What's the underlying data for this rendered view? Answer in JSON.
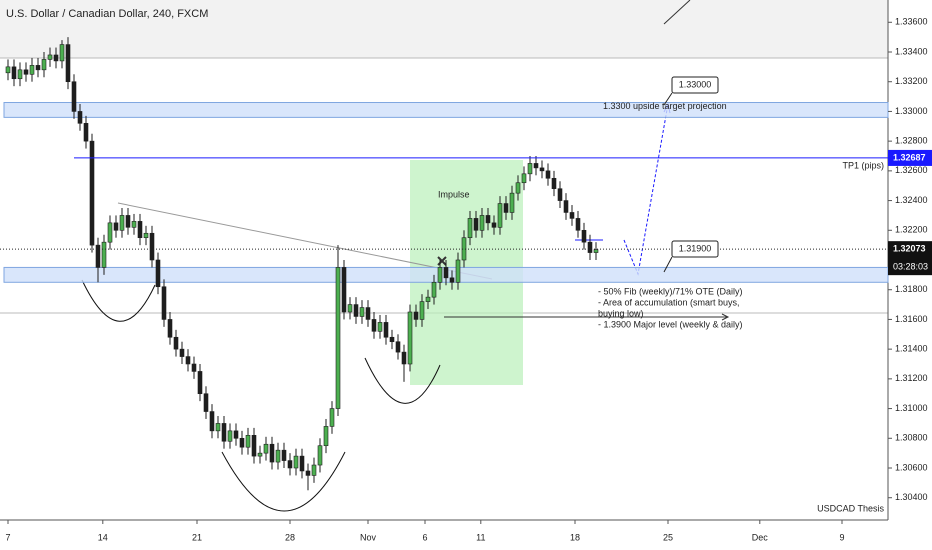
{
  "chart_data": {
    "type": "candlestick",
    "title": "U.S. Dollar / Canadian Dollar, 240, FXCM",
    "up_color": "#4caf50",
    "down_color": "#1e1e1e",
    "open": [
      1.3326,
      1.333,
      1.3322,
      1.3328,
      1.3325,
      1.3331,
      1.3328,
      1.3335,
      1.3338,
      1.3334,
      1.3345,
      1.332,
      1.33,
      1.3292,
      1.328,
      1.321,
      1.3195,
      1.3212,
      1.3225,
      1.322,
      1.323,
      1.3222,
      1.3226,
      1.3215,
      1.3218,
      1.32,
      1.3182,
      1.316,
      1.3148,
      1.314,
      1.3135,
      1.313,
      1.3125,
      1.311,
      1.3098,
      1.3085,
      1.309,
      1.3078,
      1.3085,
      1.308,
      1.3074,
      1.3082,
      1.3068,
      1.307,
      1.3076,
      1.3064,
      1.3072,
      1.3065,
      1.306,
      1.3068,
      1.3058,
      1.3055,
      1.3062,
      1.3075,
      1.3088,
      1.31,
      1.3195,
      1.3165,
      1.317,
      1.3162,
      1.3168,
      1.316,
      1.3152,
      1.3158,
      1.3148,
      1.3145,
      1.3138,
      1.313,
      1.3165,
      1.316,
      1.3172,
      1.3175,
      1.3185,
      1.3195,
      1.3188,
      1.3185,
      1.32,
      1.3215,
      1.3228,
      1.322,
      1.323,
      1.3225,
      1.3222,
      1.3238,
      1.3232,
      1.3245,
      1.3252,
      1.3258,
      1.3265,
      1.3262,
      1.326,
      1.3255,
      1.3248,
      1.324,
      1.3232,
      1.3228,
      1.322,
      1.3212,
      1.3205
    ],
    "high": [
      1.3335,
      1.3335,
      1.3333,
      1.3333,
      1.3336,
      1.3336,
      1.334,
      1.3343,
      1.3343,
      1.3348,
      1.335,
      1.3325,
      1.3305,
      1.3297,
      1.3285,
      1.3215,
      1.3217,
      1.323,
      1.323,
      1.3235,
      1.3235,
      1.3231,
      1.3231,
      1.3223,
      1.3223,
      1.3205,
      1.3187,
      1.3165,
      1.3153,
      1.3145,
      1.314,
      1.3135,
      1.313,
      1.3115,
      1.3103,
      1.3095,
      1.3095,
      1.309,
      1.309,
      1.3085,
      1.3087,
      1.3087,
      1.3075,
      1.3081,
      1.3081,
      1.3077,
      1.3077,
      1.307,
      1.3073,
      1.3073,
      1.3063,
      1.3067,
      1.308,
      1.3093,
      1.3105,
      1.321,
      1.32,
      1.3175,
      1.3175,
      1.3173,
      1.3173,
      1.3165,
      1.3163,
      1.3163,
      1.3153,
      1.315,
      1.3143,
      1.317,
      1.317,
      1.3177,
      1.318,
      1.319,
      1.32,
      1.32,
      1.3193,
      1.3205,
      1.322,
      1.3233,
      1.3233,
      1.3235,
      1.3235,
      1.323,
      1.3243,
      1.3243,
      1.325,
      1.3257,
      1.3263,
      1.327,
      1.327,
      1.3267,
      1.3265,
      1.326,
      1.3253,
      1.3245,
      1.3237,
      1.3233,
      1.3225,
      1.3217,
      1.3212
    ],
    "low": [
      1.3321,
      1.3317,
      1.3317,
      1.332,
      1.332,
      1.3323,
      1.3323,
      1.333,
      1.3329,
      1.3329,
      1.3315,
      1.3295,
      1.3287,
      1.3275,
      1.3205,
      1.3185,
      1.319,
      1.3207,
      1.3215,
      1.3215,
      1.3217,
      1.3217,
      1.321,
      1.321,
      1.3195,
      1.3177,
      1.3155,
      1.3143,
      1.3135,
      1.313,
      1.3125,
      1.312,
      1.3105,
      1.3093,
      1.308,
      1.308,
      1.3073,
      1.3073,
      1.3075,
      1.3069,
      1.3069,
      1.3063,
      1.3063,
      1.3065,
      1.3059,
      1.3059,
      1.306,
      1.3055,
      1.3055,
      1.3053,
      1.3045,
      1.305,
      1.3057,
      1.307,
      1.3083,
      1.3095,
      1.316,
      1.316,
      1.3157,
      1.3157,
      1.3155,
      1.3147,
      1.3147,
      1.3143,
      1.314,
      1.3133,
      1.3118,
      1.3125,
      1.3155,
      1.3155,
      1.3167,
      1.317,
      1.318,
      1.3183,
      1.318,
      1.318,
      1.3195,
      1.321,
      1.3215,
      1.3215,
      1.322,
      1.3217,
      1.3217,
      1.3227,
      1.3227,
      1.324,
      1.3247,
      1.3253,
      1.3257,
      1.3255,
      1.325,
      1.3243,
      1.3235,
      1.3227,
      1.3223,
      1.3215,
      1.3207,
      1.32,
      1.32
    ],
    "close": [
      1.333,
      1.3322,
      1.3328,
      1.3325,
      1.3331,
      1.3328,
      1.3335,
      1.3338,
      1.3334,
      1.3345,
      1.332,
      1.33,
      1.3292,
      1.328,
      1.321,
      1.3195,
      1.3212,
      1.3225,
      1.322,
      1.323,
      1.3222,
      1.3226,
      1.3215,
      1.3218,
      1.32,
      1.3182,
      1.316,
      1.3148,
      1.314,
      1.3135,
      1.313,
      1.3125,
      1.311,
      1.3098,
      1.3085,
      1.309,
      1.3078,
      1.3085,
      1.308,
      1.3074,
      1.3082,
      1.3068,
      1.307,
      1.3076,
      1.3064,
      1.3072,
      1.3065,
      1.306,
      1.3068,
      1.3058,
      1.3055,
      1.3062,
      1.3075,
      1.3088,
      1.31,
      1.3195,
      1.3165,
      1.317,
      1.3162,
      1.3168,
      1.316,
      1.3152,
      1.3158,
      1.3148,
      1.3145,
      1.3138,
      1.313,
      1.3165,
      1.316,
      1.3172,
      1.3175,
      1.3185,
      1.3195,
      1.3188,
      1.3185,
      1.32,
      1.3215,
      1.3228,
      1.322,
      1.323,
      1.3225,
      1.3222,
      1.3238,
      1.3232,
      1.3245,
      1.3252,
      1.3258,
      1.3265,
      1.3262,
      1.326,
      1.3255,
      1.3248,
      1.324,
      1.3232,
      1.3228,
      1.322,
      1.3212,
      1.3205,
      1.3207
    ],
    "xlim": [
      -1.333,
      146.667
    ],
    "xticks": [
      {
        "value": 0,
        "label": "7"
      },
      {
        "value": 15.8,
        "label": "14"
      },
      {
        "value": 31.5,
        "label": "21"
      },
      {
        "value": 47,
        "label": "28"
      },
      {
        "value": 60,
        "label": "Nov"
      },
      {
        "value": 69.5,
        "label": "6"
      },
      {
        "value": 78.8,
        "label": "11"
      },
      {
        "value": 94.5,
        "label": "18"
      },
      {
        "value": 110,
        "label": "25"
      },
      {
        "value": 125.3,
        "label": "Dec"
      },
      {
        "value": 139,
        "label": "9"
      }
    ],
    "ylim": [
      1.3025,
      1.3375
    ],
    "yticks": [
      {
        "value": 1.304,
        "label": "1.30400"
      },
      {
        "value": 1.306,
        "label": "1.30600"
      },
      {
        "value": 1.308,
        "label": "1.30800"
      },
      {
        "value": 1.31,
        "label": "1.31000"
      },
      {
        "value": 1.312,
        "label": "1.31200"
      },
      {
        "value": 1.314,
        "label": "1.31400"
      },
      {
        "value": 1.316,
        "label": "1.31600"
      },
      {
        "value": 1.318,
        "label": "1.31800"
      },
      {
        "value": 1.32,
        "label": "1.32000"
      },
      {
        "value": 1.322,
        "label": "1.32200"
      },
      {
        "value": 1.324,
        "label": "1.32400"
      },
      {
        "value": 1.326,
        "label": "1.32600"
      },
      {
        "value": 1.328,
        "label": "1.32800"
      },
      {
        "value": 1.33,
        "label": "1.33000"
      },
      {
        "value": 1.332,
        "label": "1.33200"
      },
      {
        "value": 1.334,
        "label": "1.33400"
      },
      {
        "value": 1.336,
        "label": "1.33600"
      }
    ],
    "target_line": {
      "value": 1.32687,
      "label": "1.32687",
      "text": "TP1 (pips)",
      "color": "#1a1aff"
    },
    "last_price": {
      "value": 1.32073,
      "label": "1.32073",
      "countdown": "03:28:03"
    },
    "zones": [
      {
        "range": [
          1.3296,
          1.3306
        ],
        "text": "1.3300 upside target projection"
      },
      {
        "range": [
          1.3185,
          1.3195
        ]
      }
    ],
    "callouts": [
      "1.33000",
      "1.31900"
    ],
    "impulse_label": "Impulse",
    "notes": [
      "- 50% Fib (weekly)/71% OTE (Daily)",
      "- Area of accumulation (smart buys,",
      "buying low)",
      "- 1.3900 Major level (weekly & daily)"
    ],
    "thesis_label": "USDCAD Thesis"
  }
}
